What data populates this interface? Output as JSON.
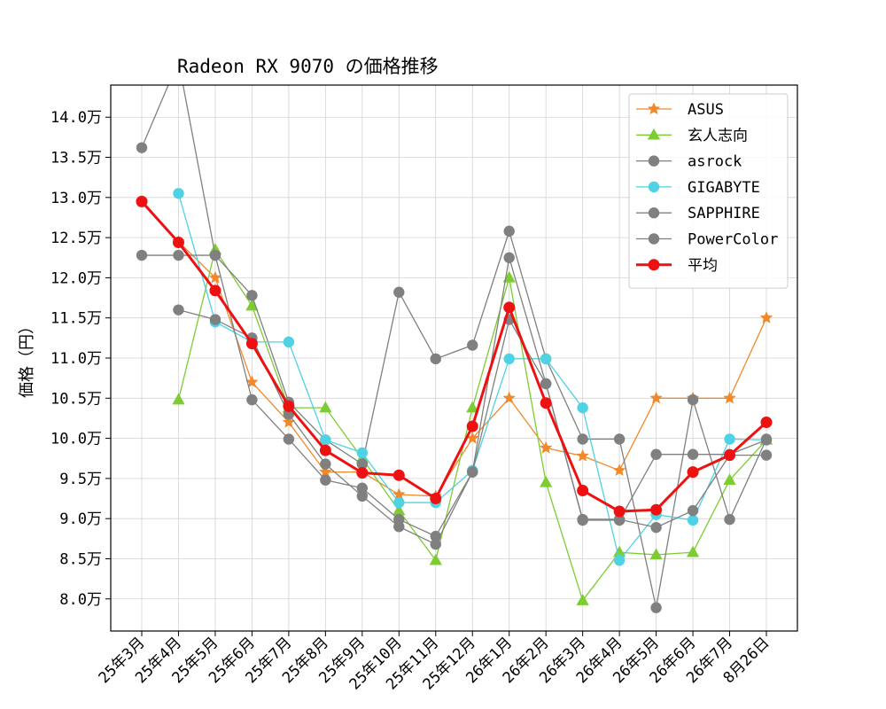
{
  "chart_data": {
    "type": "line",
    "title": "Radeon RX 9070 の価格推移",
    "xlabel": "",
    "ylabel": "価格（円）",
    "categories": [
      "25年3月",
      "25年4月",
      "25年5月",
      "25年6月",
      "25年7月",
      "25年8月",
      "25年9月",
      "25年10月",
      "25年11月",
      "25年12月",
      "26年1月",
      "26年2月",
      "26年3月",
      "26年4月",
      "26年5月",
      "26年6月",
      "26年7月",
      "8月26日"
    ],
    "y_unit_suffix": "万",
    "ylim": [
      7.6,
      14.4
    ],
    "yticks": [
      8.0,
      8.5,
      9.0,
      9.5,
      10.0,
      10.5,
      11.0,
      11.5,
      12.0,
      12.5,
      13.0,
      13.5,
      14.0
    ],
    "ytick_labels": [
      "8.0万",
      "8.5万",
      "9.0万",
      "9.5万",
      "10.0万",
      "10.5万",
      "11.0万",
      "11.5万",
      "12.0万",
      "12.5万",
      "13.0万",
      "13.5万",
      "14.0万"
    ],
    "grid": true,
    "legend_position": "top-right",
    "series": [
      {
        "name": "ASUS",
        "color": "#f0892a",
        "marker": "star",
        "linewidth": 1.3,
        "values": [
          12.95,
          12.45,
          12.0,
          10.7,
          10.2,
          9.58,
          9.58,
          9.3,
          9.28,
          10.0,
          10.5,
          9.88,
          9.78,
          9.6,
          10.5,
          10.5,
          10.5,
          11.5
        ]
      },
      {
        "name": "玄人志向",
        "color": "#7ccc32",
        "marker": "triangle",
        "linewidth": 1.3,
        "values": [
          null,
          10.48,
          12.35,
          11.65,
          10.38,
          10.38,
          9.75,
          9.1,
          8.48,
          10.38,
          12.0,
          9.45,
          7.98,
          8.58,
          8.55,
          8.58,
          9.48,
          9.98
        ]
      },
      {
        "name": "asrock",
        "color": "#808080",
        "marker": "circle",
        "linewidth": 1.3,
        "values": [
          13.62,
          14.7,
          12.28,
          11.78,
          10.45,
          9.98,
          9.68,
          11.82,
          10.99,
          11.16,
          12.58,
          10.99,
          9.99,
          9.99,
          7.89,
          10.48,
          8.99,
          9.99
        ]
      },
      {
        "name": "GIGABYTE",
        "color": "#4fd2e3",
        "marker": "circle",
        "linewidth": 1.3,
        "values": [
          null,
          13.05,
          11.45,
          11.2,
          11.2,
          9.98,
          9.82,
          9.2,
          9.2,
          9.6,
          10.99,
          10.99,
          10.38,
          8.48,
          9.05,
          8.98,
          9.99,
          9.98
        ]
      },
      {
        "name": "SAPPHIRE",
        "color": "#808080",
        "marker": "circle",
        "linewidth": 1.3,
        "values": [
          12.28,
          12.28,
          12.28,
          10.48,
          9.99,
          9.48,
          9.38,
          8.99,
          8.78,
          9.58,
          12.25,
          10.68,
          8.99,
          8.99,
          8.89,
          9.1,
          9.79,
          9.79
        ]
      },
      {
        "name": "PowerColor",
        "color": "#808080",
        "marker": "circle",
        "linewidth": 1.3,
        "values": [
          null,
          11.6,
          11.48,
          11.25,
          10.3,
          9.68,
          9.28,
          8.9,
          8.68,
          9.58,
          11.48,
          10.68,
          8.98,
          8.98,
          9.8,
          9.8,
          9.8,
          9.98
        ]
      },
      {
        "name": "平均",
        "color": "#ee1111",
        "marker": "circle",
        "linewidth": 3,
        "values": [
          12.95,
          12.44,
          11.84,
          11.18,
          10.4,
          9.85,
          9.57,
          9.54,
          9.25,
          10.15,
          11.63,
          10.44,
          9.35,
          9.09,
          9.11,
          9.58,
          9.79,
          10.2
        ]
      }
    ]
  }
}
